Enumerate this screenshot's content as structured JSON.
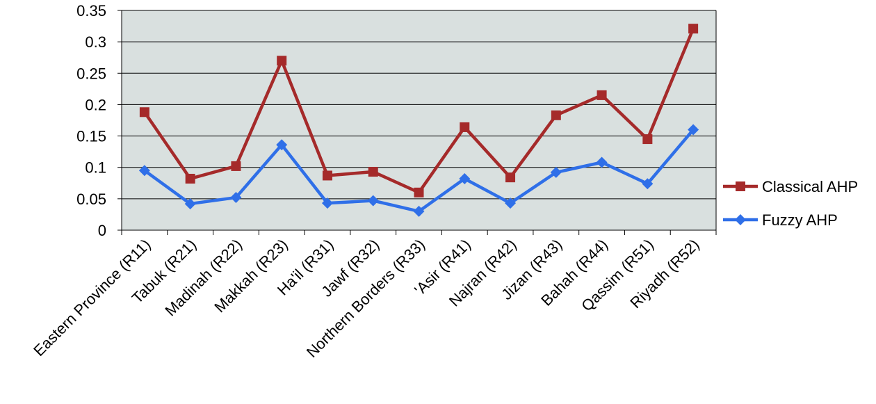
{
  "chart_data": {
    "type": "line",
    "title": "",
    "xlabel": "",
    "ylabel": "",
    "categories": [
      "Eastern Province (R11)",
      "Tabuk (R21)",
      "Madinah (R22)",
      "Makkah (R23)",
      "Ha'il (R31)",
      "Jawf (R32)",
      "Northern Borders (R33)",
      "'Asir (R41)",
      "Najran (R42)",
      "Jizan (R43)",
      "Bahah (R44)",
      "Qassim (R51)",
      "Riyadh (R52)"
    ],
    "ylim": [
      0,
      0.35
    ],
    "yticks": [
      0,
      0.05,
      0.1,
      0.15,
      0.2,
      0.25,
      0.3,
      0.35
    ],
    "ytick_labels": [
      "0",
      "0.05",
      "0.1",
      "0.15",
      "0.2",
      "0.25",
      "0.3",
      "0.35"
    ],
    "grid": true,
    "legend_position": "right",
    "plot_background": "#d9e0df",
    "series": [
      {
        "name": "Classical AHP",
        "color": "#a52a2a",
        "marker": "square",
        "values": [
          0.188,
          0.082,
          0.102,
          0.27,
          0.087,
          0.093,
          0.06,
          0.164,
          0.084,
          0.183,
          0.215,
          0.145,
          0.321
        ]
      },
      {
        "name": "Fuzzy AHP",
        "color": "#2f6fe8",
        "marker": "diamond",
        "values": [
          0.095,
          0.042,
          0.052,
          0.136,
          0.043,
          0.047,
          0.03,
          0.082,
          0.043,
          0.092,
          0.108,
          0.074,
          0.16
        ]
      }
    ]
  }
}
